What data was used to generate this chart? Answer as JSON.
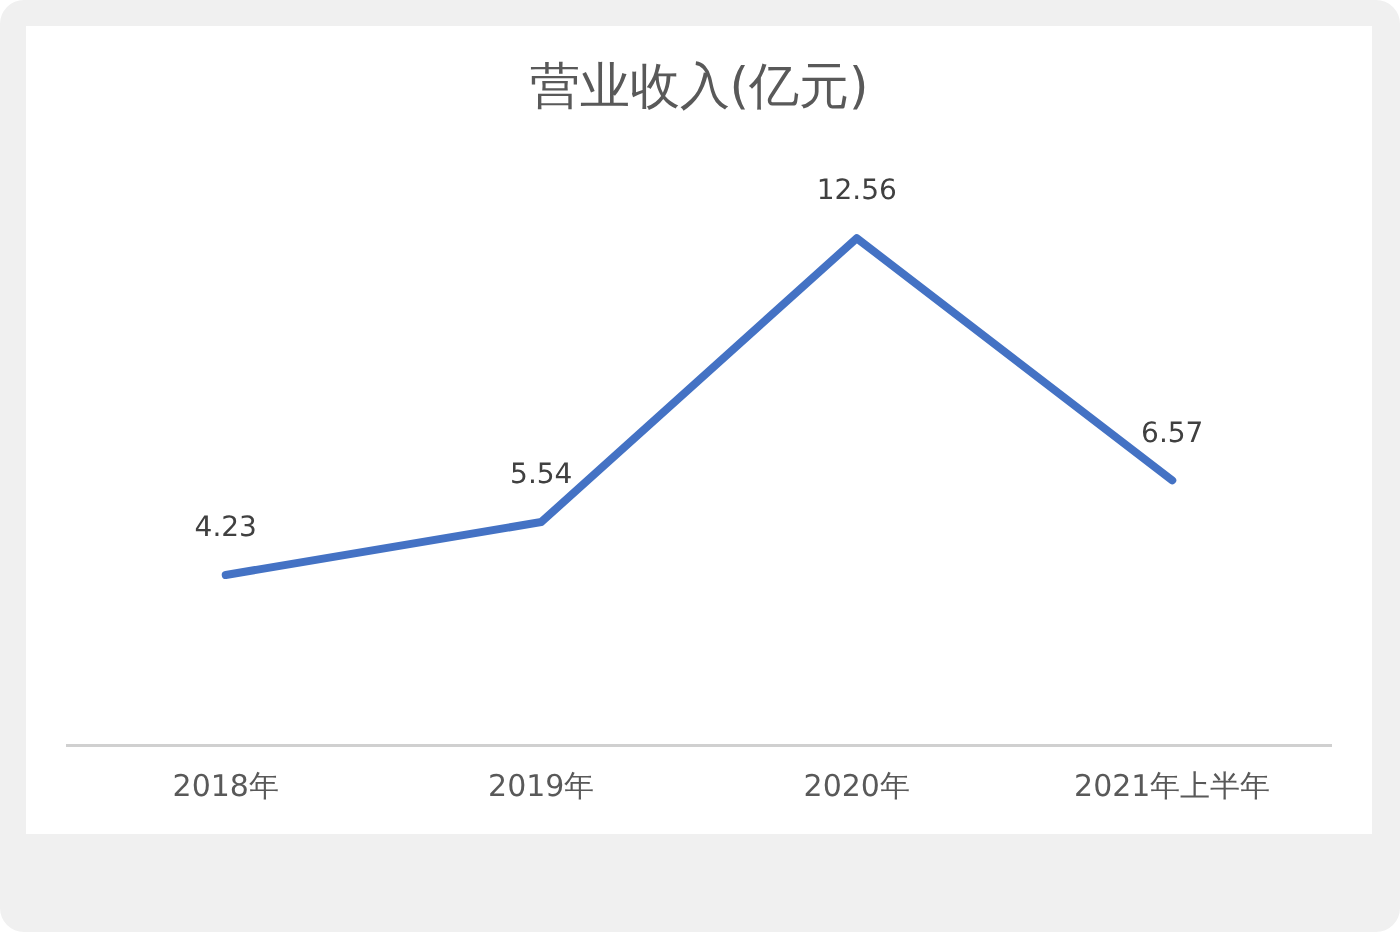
{
  "chart_data": {
    "type": "line",
    "title": "营业收入(亿元)",
    "categories": [
      "2018年",
      "2019年",
      "2020年",
      "2021年上半年"
    ],
    "values": [
      4.23,
      5.54,
      12.56,
      6.57
    ],
    "color": "#4472c4",
    "data_labels": true,
    "tick_labels": "x"
  }
}
